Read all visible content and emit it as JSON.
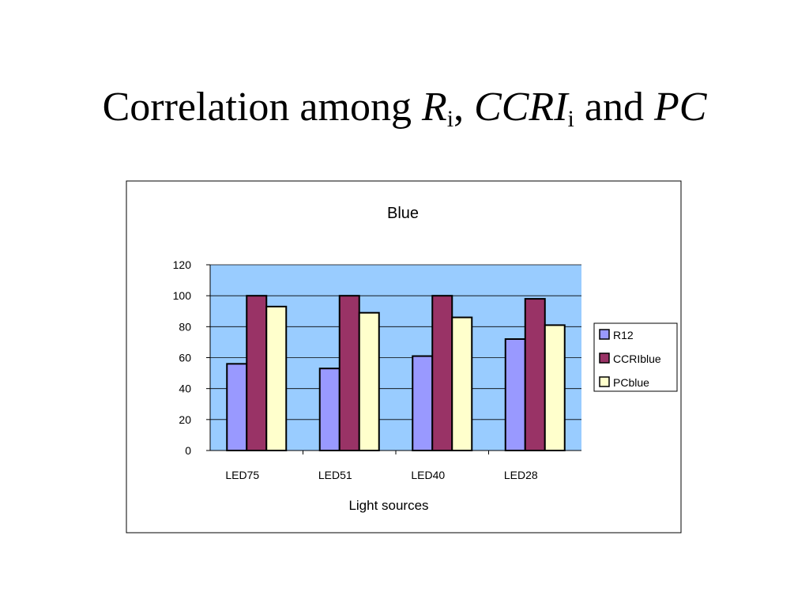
{
  "slide": {
    "title_part1": "Correlation among ",
    "title_R": "R",
    "title_i1": "i",
    "title_comma": ", ",
    "title_CCRI": "CCRI",
    "title_i2": "i",
    "title_and": " and ",
    "title_PC": "PC"
  },
  "chart_data": {
    "type": "bar",
    "title": "Blue",
    "xlabel": "Light sources",
    "ylabel": "",
    "categories": [
      "LED75",
      "LED51",
      "LED40",
      "LED28"
    ],
    "series": [
      {
        "name": "R12",
        "values": [
          56,
          53,
          61,
          72
        ],
        "color": "#9999ff"
      },
      {
        "name": "CCRIblue",
        "values": [
          100,
          100,
          100,
          98
        ],
        "color": "#993366"
      },
      {
        "name": "PCblue",
        "values": [
          93,
          89,
          86,
          81
        ],
        "color": "#ffffcc"
      }
    ],
    "ylim": [
      0,
      120
    ],
    "yticks": [
      0,
      20,
      40,
      60,
      80,
      100,
      120
    ],
    "grid": true,
    "plot_background": "#99ccff",
    "legend_position": "right"
  }
}
